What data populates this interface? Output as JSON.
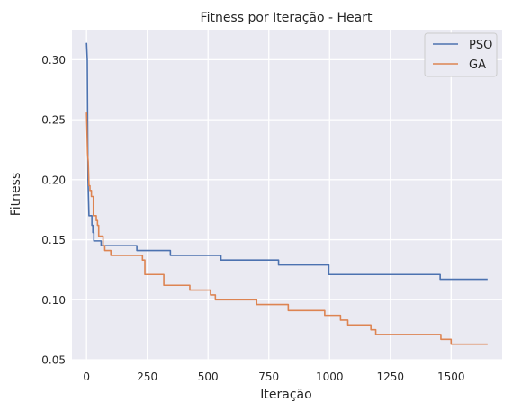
{
  "chart_data": {
    "type": "line",
    "title": "Fitness por Iteração - Heart",
    "xlabel": "Iteração",
    "ylabel": "Fitness",
    "xlim": [
      -60,
      1710
    ],
    "ylim": [
      0.05,
      0.325
    ],
    "xticks": [
      0,
      250,
      500,
      750,
      1000,
      1250,
      1500
    ],
    "xtick_labels": [
      "0",
      "250",
      "500",
      "750",
      "1000",
      "1250",
      "1500"
    ],
    "yticks": [
      0.05,
      0.1,
      0.15,
      0.2,
      0.25,
      0.3
    ],
    "ytick_labels": [
      "0.05",
      "0.10",
      "0.15",
      "0.20",
      "0.25",
      "0.30"
    ],
    "grid": true,
    "background": "#eaeaf2",
    "legend_position": "top-right",
    "series": [
      {
        "name": "PSO",
        "color": "#4c72b0",
        "points": [
          [
            0,
            0.314
          ],
          [
            3,
            0.3
          ],
          [
            5,
            0.23
          ],
          [
            6,
            0.2
          ],
          [
            8,
            0.185
          ],
          [
            10,
            0.17
          ],
          [
            22,
            0.17
          ],
          [
            22,
            0.162
          ],
          [
            26,
            0.162
          ],
          [
            26,
            0.156
          ],
          [
            30,
            0.156
          ],
          [
            30,
            0.149
          ],
          [
            60,
            0.149
          ],
          [
            60,
            0.145
          ],
          [
            207,
            0.145
          ],
          [
            207,
            0.141
          ],
          [
            345,
            0.141
          ],
          [
            345,
            0.137
          ],
          [
            553,
            0.137
          ],
          [
            553,
            0.133
          ],
          [
            790,
            0.133
          ],
          [
            790,
            0.129
          ],
          [
            997,
            0.129
          ],
          [
            997,
            0.121
          ],
          [
            1455,
            0.121
          ],
          [
            1455,
            0.117
          ],
          [
            1650,
            0.117
          ]
        ]
      },
      {
        "name": "GA",
        "color": "#dd8452",
        "points": [
          [
            0,
            0.256
          ],
          [
            2,
            0.24
          ],
          [
            4,
            0.222
          ],
          [
            7,
            0.215
          ],
          [
            10,
            0.195
          ],
          [
            14,
            0.195
          ],
          [
            14,
            0.191
          ],
          [
            20,
            0.191
          ],
          [
            20,
            0.186
          ],
          [
            28,
            0.186
          ],
          [
            28,
            0.17
          ],
          [
            40,
            0.17
          ],
          [
            40,
            0.166
          ],
          [
            45,
            0.166
          ],
          [
            45,
            0.162
          ],
          [
            50,
            0.162
          ],
          [
            50,
            0.153
          ],
          [
            68,
            0.153
          ],
          [
            68,
            0.145
          ],
          [
            75,
            0.145
          ],
          [
            75,
            0.141
          ],
          [
            100,
            0.141
          ],
          [
            100,
            0.137
          ],
          [
            230,
            0.137
          ],
          [
            230,
            0.133
          ],
          [
            240,
            0.133
          ],
          [
            240,
            0.121
          ],
          [
            318,
            0.121
          ],
          [
            318,
            0.112
          ],
          [
            425,
            0.112
          ],
          [
            425,
            0.108
          ],
          [
            510,
            0.108
          ],
          [
            510,
            0.104
          ],
          [
            530,
            0.104
          ],
          [
            530,
            0.1
          ],
          [
            700,
            0.1
          ],
          [
            700,
            0.096
          ],
          [
            830,
            0.096
          ],
          [
            830,
            0.091
          ],
          [
            980,
            0.091
          ],
          [
            980,
            0.087
          ],
          [
            1045,
            0.087
          ],
          [
            1045,
            0.083
          ],
          [
            1075,
            0.083
          ],
          [
            1075,
            0.079
          ],
          [
            1170,
            0.079
          ],
          [
            1170,
            0.075
          ],
          [
            1190,
            0.075
          ],
          [
            1190,
            0.071
          ],
          [
            1458,
            0.071
          ],
          [
            1458,
            0.067
          ],
          [
            1500,
            0.067
          ],
          [
            1500,
            0.063
          ],
          [
            1650,
            0.063
          ]
        ]
      }
    ]
  }
}
